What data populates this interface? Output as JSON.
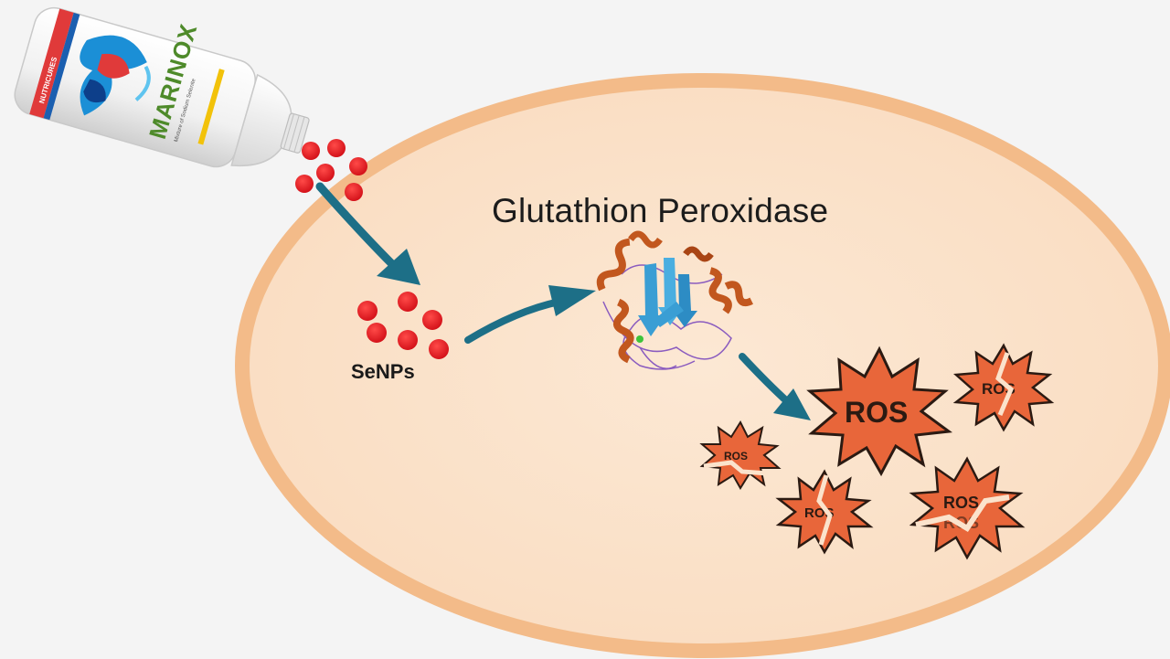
{
  "title": "Glutathion Peroxidase",
  "nanoparticles_label": "SeNPs",
  "bottle": {
    "brand": "MARINOX",
    "side_text": "NUTRICURES",
    "small_text": "Mixture of Sodium Selenite",
    "colors": {
      "stripe": "#e03a3a",
      "wave": "#1b8fd6"
    }
  },
  "ros_label": "ROS",
  "colors": {
    "cell_fill": "#fbe3cc",
    "cell_border": "#f3bb89",
    "particle": "#e3201f",
    "arrow": "#1d6f87",
    "ros_fill": "#e8663a",
    "helix": "#c2571e",
    "sheet": "#3a9ed4"
  }
}
